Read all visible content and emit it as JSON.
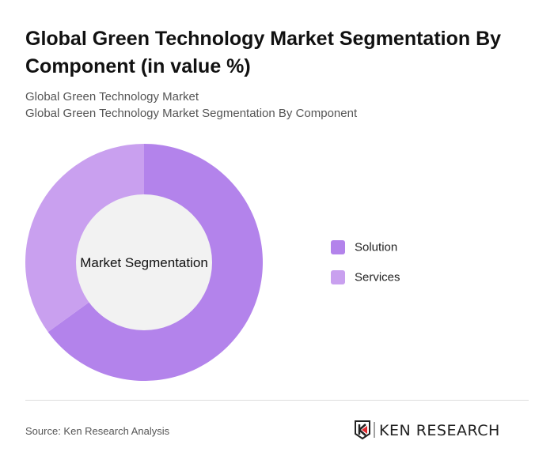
{
  "title": "Global Green Technology Market Segmentation By Component (in value %)",
  "subtitle1": "Global Green Technology Market",
  "subtitle2": "Global Green Technology Market Segmentation By Component",
  "chart_data": {
    "type": "pie",
    "donut": true,
    "center_label": "Market Segmentation",
    "categories": [
      "Solution",
      "Services"
    ],
    "values": [
      65,
      35
    ],
    "colors": [
      "#b383eb",
      "#c9a0ef"
    ],
    "legend_position": "right"
  },
  "source": "Source: Ken Research Analysis",
  "logo": {
    "text": "KEN RESEARCH",
    "accent": "#e0282e"
  }
}
